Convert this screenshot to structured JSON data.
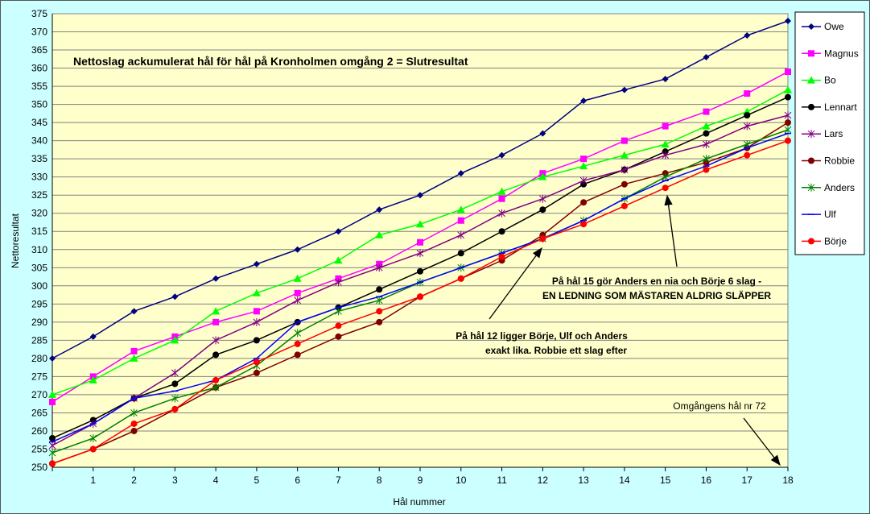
{
  "chart_data": {
    "type": "line",
    "title": "Nettoslag ackumulerat hål för hål på Kronholmen omgång 2 = Slutresultat",
    "xlabel": "Hål nummer",
    "ylabel": "Nettoresultat",
    "x": [
      0,
      1,
      2,
      3,
      4,
      5,
      6,
      7,
      8,
      9,
      10,
      11,
      12,
      13,
      14,
      15,
      16,
      17,
      18
    ],
    "ylim": [
      250,
      375
    ],
    "ystep": 5,
    "grid": true,
    "legend": "right",
    "series": [
      {
        "name": "Owe",
        "color": "#000080",
        "marker": "diamond",
        "values": [
          280,
          286,
          293,
          297,
          302,
          306,
          310,
          315,
          321,
          325,
          331,
          336,
          342,
          351,
          354,
          357,
          363,
          369,
          373
        ]
      },
      {
        "name": "Magnus",
        "color": "#ff00ff",
        "marker": "square",
        "values": [
          268,
          275,
          282,
          286,
          290,
          293,
          298,
          302,
          306,
          312,
          318,
          324,
          331,
          335,
          340,
          344,
          348,
          353,
          359
        ]
      },
      {
        "name": "Bo",
        "color": "#00ff00",
        "marker": "triangle",
        "values": [
          270,
          274,
          280,
          285,
          293,
          298,
          302,
          307,
          314,
          317,
          321,
          326,
          330,
          333,
          336,
          339,
          344,
          348,
          354
        ]
      },
      {
        "name": "Lennart",
        "color": "#000000",
        "marker": "circle",
        "values": [
          258,
          263,
          269,
          273,
          281,
          285,
          290,
          294,
          299,
          304,
          309,
          315,
          321,
          328,
          332,
          337,
          342,
          347,
          352
        ]
      },
      {
        "name": "Lars",
        "color": "#800080",
        "marker": "star",
        "values": [
          256,
          262,
          269,
          276,
          285,
          290,
          296,
          301,
          305,
          309,
          314,
          320,
          324,
          329,
          332,
          336,
          339,
          344,
          347
        ]
      },
      {
        "name": "Robbie",
        "color": "#800000",
        "marker": "circle",
        "values": [
          251,
          255,
          260,
          266,
          272,
          276,
          281,
          286,
          290,
          297,
          302,
          307,
          314,
          323,
          328,
          331,
          334,
          338,
          345
        ]
      },
      {
        "name": "Anders",
        "color": "#008000",
        "marker": "star",
        "values": [
          254,
          258,
          265,
          269,
          272,
          278,
          287,
          293,
          296,
          301,
          305,
          309,
          313,
          318,
          324,
          330,
          335,
          339,
          343
        ]
      },
      {
        "name": "Ulf",
        "color": "#0000ff",
        "marker": "dash",
        "values": [
          257,
          262,
          269,
          271,
          274,
          280,
          290,
          294,
          297,
          301,
          305,
          309,
          313,
          318,
          324,
          329,
          333,
          338,
          342
        ]
      },
      {
        "name": "Börje",
        "color": "#ff0000",
        "marker": "circle",
        "values": [
          251,
          255,
          262,
          266,
          274,
          279,
          284,
          289,
          293,
          297,
          302,
          308,
          313,
          317,
          322,
          327,
          332,
          336,
          340
        ]
      }
    ],
    "annotations": [
      {
        "lines": [
          "På hål 15 gör Anders en nia och Börje 6 slag -",
          "EN LEDNING SOM MÄSTAREN ALDRIG SLÄPPER"
        ]
      },
      {
        "lines": [
          "På hål 12 ligger Börje, Ulf och Anders",
          "exakt lika. Robbie ett slag efter"
        ]
      },
      {
        "lines": [
          "Omgångens hål nr 72"
        ]
      }
    ]
  }
}
